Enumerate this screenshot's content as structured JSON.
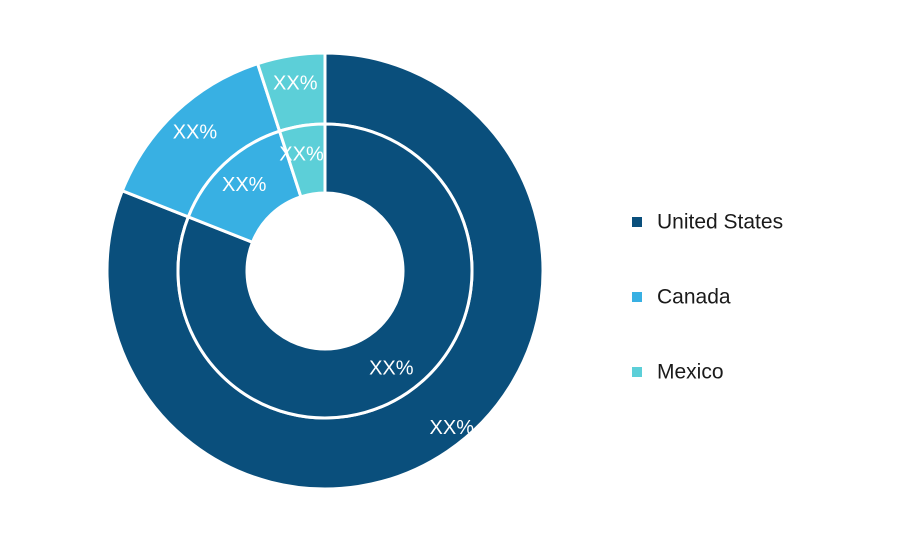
{
  "chart_data": {
    "type": "pie",
    "subtype": "nested-donut",
    "categories": [
      "United States",
      "Canada",
      "Mexico"
    ],
    "colors": [
      "#0a4f7c",
      "#38b0e3",
      "#5ccfd8"
    ],
    "series": [
      {
        "ring": "outer",
        "values": [
          81,
          14,
          5
        ],
        "labels": [
          "XX%",
          "XX%",
          "XX%"
        ]
      },
      {
        "ring": "inner",
        "values": [
          81,
          14,
          5
        ],
        "labels": [
          "XX%",
          "XX%",
          "XX%"
        ]
      }
    ],
    "legend": {
      "position": "right",
      "items": [
        "United States",
        "Canada",
        "Mexico"
      ]
    }
  }
}
